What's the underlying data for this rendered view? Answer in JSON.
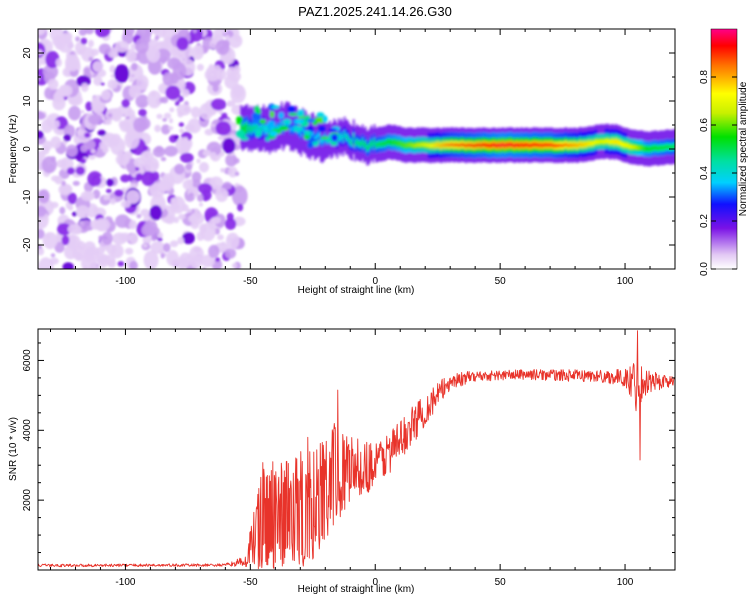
{
  "title": "PAZ1.2025.241.14.26.G30",
  "chart_data": [
    {
      "type": "heatmap",
      "xlabel": "Height of straight line (km)",
      "ylabel": "Frequency (Hz)",
      "xlim": [
        -135,
        120
      ],
      "ylim": [
        -25,
        25
      ],
      "xticks": [
        -100,
        -50,
        0,
        50,
        100
      ],
      "yticks": [
        -20,
        -10,
        0,
        10,
        20
      ],
      "noise_region": {
        "x_start": -135,
        "x_end": -54,
        "y_range": [
          -25,
          25
        ],
        "level": "0.1-0.25"
      },
      "ridge": [
        {
          "x": -54,
          "f": 4.0,
          "amp": 0.55
        },
        {
          "x": -48,
          "f": 4.5,
          "amp": 0.45
        },
        {
          "x": -42,
          "f": 4.0,
          "amp": 0.4
        },
        {
          "x": -35,
          "f": 5.0,
          "amp": 0.35
        },
        {
          "x": -30,
          "f": 3.5,
          "amp": 0.35
        },
        {
          "x": -25,
          "f": 2.5,
          "amp": 0.35
        },
        {
          "x": -18,
          "f": 2.0,
          "amp": 0.4
        },
        {
          "x": -12,
          "f": 2.5,
          "amp": 0.45
        },
        {
          "x": -5,
          "f": 1.0,
          "amp": 0.5
        },
        {
          "x": 0,
          "f": 0.8,
          "amp": 0.5
        },
        {
          "x": 6,
          "f": 1.5,
          "amp": 0.55
        },
        {
          "x": 12,
          "f": 0.8,
          "amp": 0.6
        },
        {
          "x": 20,
          "f": 0.8,
          "amp": 0.7
        },
        {
          "x": 30,
          "f": 0.8,
          "amp": 0.85
        },
        {
          "x": 50,
          "f": 0.8,
          "amp": 0.95
        },
        {
          "x": 70,
          "f": 0.8,
          "amp": 0.9
        },
        {
          "x": 80,
          "f": 0.8,
          "amp": 0.8
        },
        {
          "x": 90,
          "f": 1.5,
          "amp": 0.7
        },
        {
          "x": 96,
          "f": 1.5,
          "amp": 0.75
        },
        {
          "x": 102,
          "f": 0.5,
          "amp": 0.7
        },
        {
          "x": 108,
          "f": 0.0,
          "amp": 0.55
        },
        {
          "x": 120,
          "f": 0.5,
          "amp": 0.5
        }
      ],
      "colorbar": {
        "label": "Normalized spectral amplitude",
        "ticks": [
          "0.0",
          "0.2",
          "0.4",
          "0.6",
          "0.8"
        ],
        "range": [
          0,
          1
        ]
      }
    },
    {
      "type": "line",
      "xlabel": "Height of straight line (km)",
      "ylabel": "SNR (10 * v/v)",
      "xlim": [
        -135,
        120
      ],
      "ylim": [
        0,
        6900
      ],
      "xticks": [
        -100,
        -50,
        0,
        50,
        100
      ],
      "yticks": [
        2000,
        4000,
        6000
      ],
      "color": "#e8332a",
      "envelope": [
        {
          "x": -135,
          "mean": 130,
          "amp": 40
        },
        {
          "x": -60,
          "mean": 140,
          "amp": 40
        },
        {
          "x": -52,
          "mean": 250,
          "amp": 150
        },
        {
          "x": -45,
          "mean": 1500,
          "amp": 1600
        },
        {
          "x": -35,
          "mean": 1700,
          "amp": 1600
        },
        {
          "x": -25,
          "mean": 1800,
          "amp": 1700
        },
        {
          "x": -18,
          "mean": 2600,
          "amp": 1700
        },
        {
          "x": -10,
          "mean": 2900,
          "amp": 900
        },
        {
          "x": 0,
          "mean": 3000,
          "amp": 700
        },
        {
          "x": 10,
          "mean": 3700,
          "amp": 600
        },
        {
          "x": 20,
          "mean": 4600,
          "amp": 500
        },
        {
          "x": 30,
          "mean": 5400,
          "amp": 250
        },
        {
          "x": 40,
          "mean": 5550,
          "amp": 150
        },
        {
          "x": 60,
          "mean": 5600,
          "amp": 150
        },
        {
          "x": 90,
          "mean": 5550,
          "amp": 180
        },
        {
          "x": 100,
          "mean": 5500,
          "amp": 250
        },
        {
          "x": 104,
          "mean": 5300,
          "amp": 800
        },
        {
          "x": 108,
          "mean": 5400,
          "amp": 400
        },
        {
          "x": 120,
          "mean": 5400,
          "amp": 120
        }
      ],
      "spikes": [
        {
          "x": -41,
          "y": 3100
        },
        {
          "x": -27,
          "y": 3800
        },
        {
          "x": -15,
          "y": 5150
        },
        {
          "x": 105,
          "y": 6850
        },
        {
          "x": 106,
          "y": 3150
        }
      ]
    }
  ]
}
